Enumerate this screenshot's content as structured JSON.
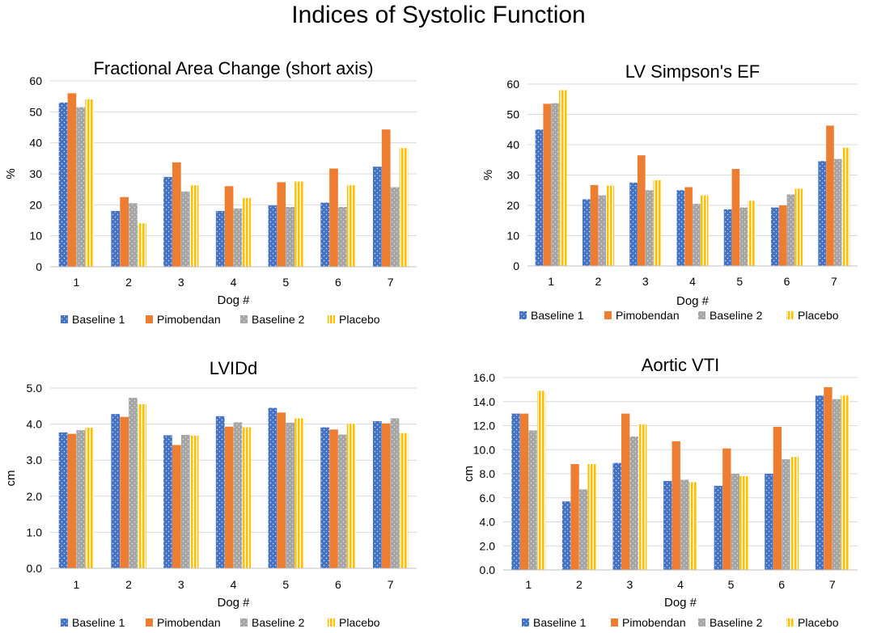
{
  "figure_title": "Indices of Systolic Function",
  "colors": {
    "Baseline 1": "#4472C4",
    "Pimobendan": "#ED7D31",
    "Baseline 2": "#A5A5A5",
    "Placebo": "#FFC000"
  },
  "chart_data": [
    {
      "type": "bar",
      "title": "Fractional Area Change (short axis)",
      "xlabel": "Dog #",
      "ylabel": "%",
      "ylim": [
        0,
        60
      ],
      "yticks": [
        "0",
        "10",
        "20",
        "30",
        "40",
        "50",
        "60"
      ],
      "categories": [
        "1",
        "2",
        "3",
        "4",
        "5",
        "6",
        "7"
      ],
      "series": [
        {
          "name": "Baseline 1",
          "values": [
            53,
            18,
            29,
            18,
            19.8,
            20.7,
            32.3
          ]
        },
        {
          "name": "Pimobendan",
          "values": [
            56,
            22.5,
            33.7,
            26,
            27.3,
            31.7,
            44.3
          ]
        },
        {
          "name": "Baseline 2",
          "values": [
            51.5,
            20.5,
            24.3,
            18.8,
            19.3,
            19.3,
            25.7
          ]
        },
        {
          "name": "Placebo",
          "values": [
            54,
            14,
            26.3,
            22.2,
            27.5,
            26.3,
            38.3
          ]
        }
      ],
      "legend": "bottom"
    },
    {
      "type": "bar",
      "title": "LV Simpson's EF",
      "xlabel": "Dog #",
      "ylabel": "%",
      "ylim": [
        0,
        60
      ],
      "yticks": [
        "0",
        "10",
        "20",
        "30",
        "40",
        "50",
        "60"
      ],
      "categories": [
        "1",
        "2",
        "3",
        "4",
        "5",
        "6",
        "7"
      ],
      "series": [
        {
          "name": "Baseline 1",
          "values": [
            45,
            22,
            27.5,
            25,
            18.7,
            19.3,
            34.6
          ]
        },
        {
          "name": "Pimobendan",
          "values": [
            53.5,
            26.7,
            36.5,
            26,
            32,
            20,
            46.3
          ]
        },
        {
          "name": "Baseline 2",
          "values": [
            53.7,
            23.3,
            25,
            20.5,
            19.3,
            23.6,
            35.3
          ]
        },
        {
          "name": "Placebo",
          "values": [
            58,
            26.5,
            28.3,
            23.3,
            21.5,
            25.5,
            39
          ]
        }
      ],
      "legend": "bottom"
    },
    {
      "type": "bar",
      "title": "LVIDd",
      "xlabel": "Dog #",
      "ylabel": "cm",
      "ylim": [
        0,
        5
      ],
      "yticks": [
        "0.0",
        "1.0",
        "2.0",
        "3.0",
        "4.0",
        "5.0"
      ],
      "categories": [
        "1",
        "2",
        "3",
        "4",
        "5",
        "6",
        "7"
      ],
      "series": [
        {
          "name": "Baseline 1",
          "values": [
            3.77,
            4.28,
            3.69,
            4.22,
            4.45,
            3.91,
            4.08
          ]
        },
        {
          "name": "Pimobendan",
          "values": [
            3.73,
            4.2,
            3.42,
            3.93,
            4.32,
            3.85,
            4.02
          ]
        },
        {
          "name": "Baseline 2",
          "values": [
            3.83,
            4.73,
            3.7,
            4.05,
            4.04,
            3.71,
            4.16
          ]
        },
        {
          "name": "Placebo",
          "values": [
            3.9,
            4.55,
            3.68,
            3.91,
            4.16,
            4.01,
            3.75
          ]
        }
      ],
      "legend": "bottom"
    },
    {
      "type": "bar",
      "title": "Aortic VTI",
      "xlabel": "Dog #",
      "ylabel": "cm",
      "ylim": [
        0,
        16
      ],
      "yticks": [
        "0.0",
        "2.0",
        "4.0",
        "6.0",
        "8.0",
        "10.0",
        "12.0",
        "14.0",
        "16.0"
      ],
      "categories": [
        "1",
        "2",
        "3",
        "4",
        "5",
        "6",
        "7"
      ],
      "series": [
        {
          "name": "Baseline 1",
          "values": [
            13,
            5.7,
            8.9,
            7.4,
            7,
            8,
            14.5
          ]
        },
        {
          "name": "Pimobendan",
          "values": [
            13,
            8.8,
            13,
            10.7,
            10.1,
            11.9,
            15.2
          ]
        },
        {
          "name": "Baseline 2",
          "values": [
            11.6,
            6.7,
            11.1,
            7.5,
            8,
            9.2,
            14.2
          ]
        },
        {
          "name": "Placebo",
          "values": [
            14.9,
            8.8,
            12.1,
            7.3,
            7.8,
            9.4,
            14.5
          ]
        }
      ],
      "legend": "bottom"
    }
  ]
}
